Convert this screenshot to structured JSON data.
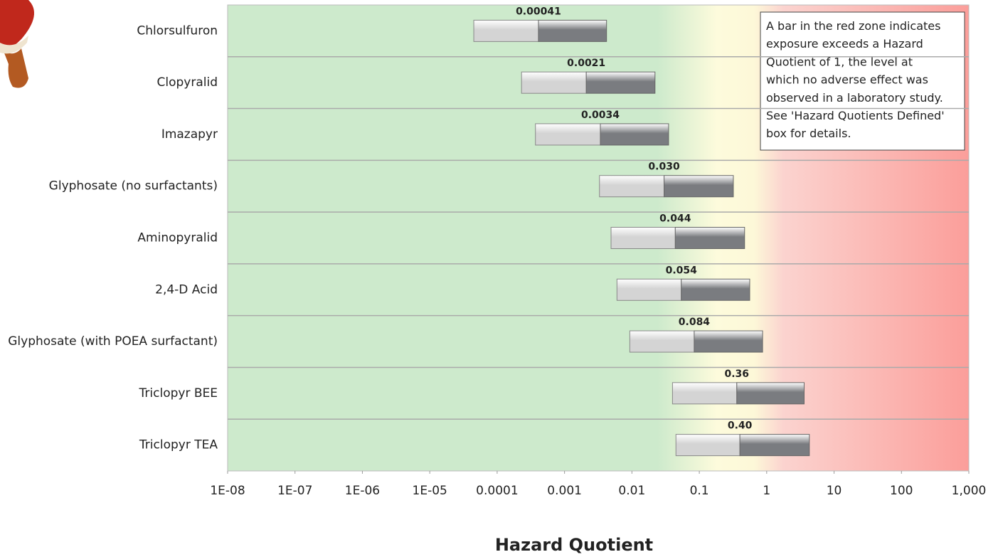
{
  "chart_data": {
    "type": "range-bar",
    "x_label": "Hazard Quotient",
    "annotation": [
      "A bar in the red zone indicates",
      "exposure exceeds a Hazard",
      "Quotient of 1, the level at",
      "which no adverse effect was",
      "observed in a laboratory study.",
      "See 'Hazard Quotients Defined'",
      "box for details."
    ],
    "categories": [
      "Chlorsulfuron",
      "Clopyralid",
      "Imazapyr",
      "Glyphosate (no surfactants)",
      "Aminopyralid",
      "2,4-D Acid",
      "Glyphosate (with POEA surfactant)",
      "Triclopyr BEE",
      "Triclopyr TEA"
    ],
    "values": [
      0.00041,
      0.0021,
      0.0034,
      0.03,
      0.044,
      0.054,
      0.084,
      0.36,
      0.4
    ],
    "value_labels": [
      "0.00041",
      "0.0021",
      "0.0034",
      "0.030",
      "0.044",
      "0.054",
      "0.084",
      "0.36",
      "0.40"
    ],
    "low": [
      4.5e-05,
      0.00023,
      0.00037,
      0.0033,
      0.0049,
      0.006,
      0.0093,
      0.04,
      0.045
    ],
    "high": [
      0.0042,
      0.022,
      0.035,
      0.32,
      0.47,
      0.56,
      0.87,
      3.6,
      4.3
    ],
    "color_low": "#d4d4d4",
    "color_high": "#7a7c80",
    "xscale": "log",
    "xlim": [
      1e-08,
      1000
    ],
    "xticks": [
      {
        "value": 1e-08,
        "label": "1E-08"
      },
      {
        "value": 1e-07,
        "label": "1E-07"
      },
      {
        "value": 1e-06,
        "label": "1E-06"
      },
      {
        "value": 1e-05,
        "label": "1E-05"
      },
      0.0001,
      0.001,
      0.01,
      0.1,
      1,
      10,
      100,
      {
        "value": 1000,
        "label": "1,000"
      }
    ],
    "grid": true
  }
}
